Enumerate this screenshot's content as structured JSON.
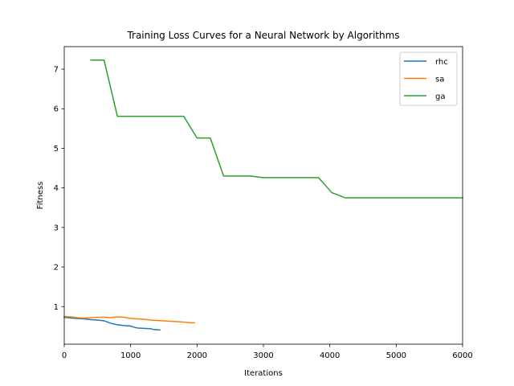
{
  "chart_data": {
    "type": "line",
    "title": "Training Loss Curves for a Neural Network by Algorithms",
    "xlabel": "Iterations",
    "ylabel": "Fitness",
    "xlim": [
      0,
      6000
    ],
    "ylim": [
      0.05,
      7.57
    ],
    "xticks": [
      0,
      1000,
      2000,
      3000,
      4000,
      5000,
      6000
    ],
    "yticks": [
      1,
      2,
      3,
      4,
      5,
      6,
      7
    ],
    "grid": false,
    "legend_position": "top-right",
    "series": [
      {
        "name": "rhc",
        "color": "#1f77b4",
        "x": [
          0,
          100,
          200,
          300,
          400,
          500,
          600,
          700,
          800,
          900,
          1000,
          1050,
          1100,
          1200,
          1300,
          1350,
          1440
        ],
        "y": [
          0.73,
          0.71,
          0.7,
          0.69,
          0.67,
          0.66,
          0.64,
          0.58,
          0.54,
          0.52,
          0.51,
          0.48,
          0.46,
          0.45,
          0.44,
          0.42,
          0.41
        ]
      },
      {
        "name": "sa",
        "color": "#ff7f0e",
        "x": [
          0,
          100,
          200,
          300,
          400,
          500,
          600,
          700,
          800,
          900,
          1000,
          1100,
          1200,
          1300,
          1400,
          1500,
          1600,
          1700,
          1800,
          1900,
          1960
        ],
        "y": [
          0.75,
          0.74,
          0.72,
          0.71,
          0.72,
          0.73,
          0.73,
          0.72,
          0.74,
          0.73,
          0.7,
          0.69,
          0.68,
          0.66,
          0.65,
          0.64,
          0.63,
          0.62,
          0.61,
          0.59,
          0.59
        ]
      },
      {
        "name": "ga",
        "color": "#2ca02c",
        "x": [
          400,
          600,
          800,
          1000,
          1200,
          1400,
          1600,
          1800,
          2000,
          2200,
          2400,
          2600,
          2800,
          3000,
          3200,
          3400,
          3600,
          3830,
          4030,
          4230,
          4400,
          6000
        ],
        "y": [
          7.23,
          7.23,
          5.81,
          5.81,
          5.81,
          5.81,
          5.81,
          5.81,
          5.26,
          5.26,
          4.3,
          4.3,
          4.3,
          4.26,
          4.26,
          4.26,
          4.26,
          4.26,
          3.88,
          3.75,
          3.75,
          3.75
        ]
      }
    ]
  }
}
